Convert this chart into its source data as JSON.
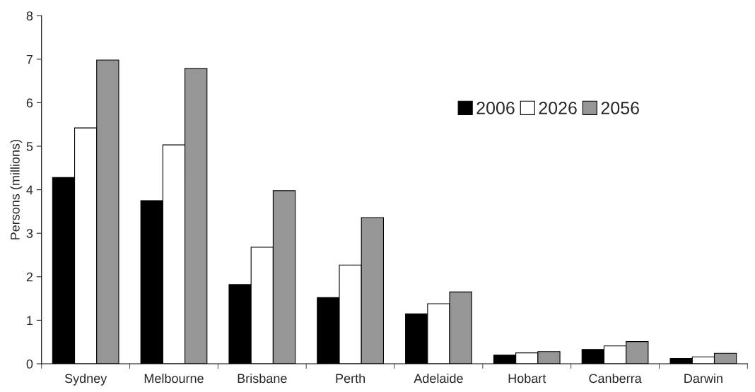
{
  "chart_data": {
    "type": "bar",
    "ylabel": "Persons (millions)",
    "categories": [
      "Sydney",
      "Melbourne",
      "Brisbane",
      "Perth",
      "Adelaide",
      "Hobart",
      "Canberra",
      "Darwin"
    ],
    "series": [
      {
        "name": "2006",
        "color": "#000000",
        "values": [
          4.28,
          3.75,
          1.82,
          1.52,
          1.15,
          0.2,
          0.33,
          0.12
        ]
      },
      {
        "name": "2026",
        "color": "#ffffff",
        "values": [
          5.42,
          5.03,
          2.68,
          2.27,
          1.38,
          0.25,
          0.41,
          0.16
        ]
      },
      {
        "name": "2056",
        "color": "#969696",
        "values": [
          6.98,
          6.79,
          3.98,
          3.36,
          1.65,
          0.28,
          0.51,
          0.24
        ]
      }
    ],
    "ylim": [
      0,
      8
    ],
    "yticks": [
      0,
      1,
      2,
      3,
      4,
      5,
      6,
      7,
      8
    ],
    "grid": false,
    "legend": "top right"
  }
}
